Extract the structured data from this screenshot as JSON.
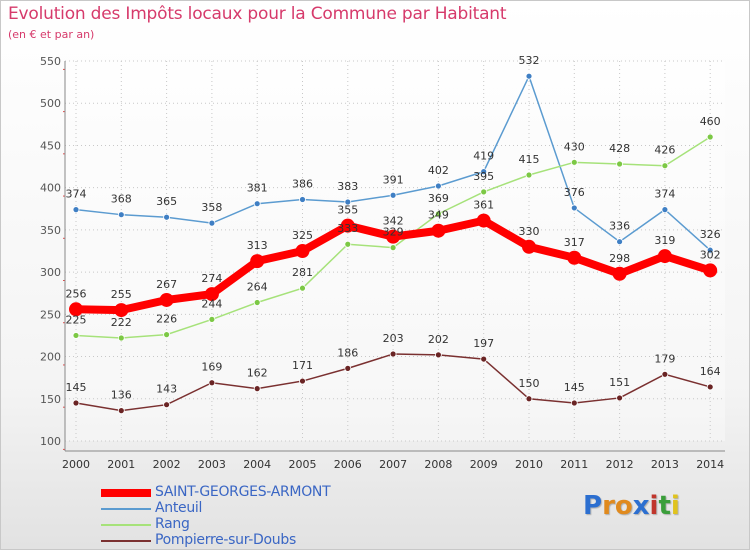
{
  "chart_data": {
    "type": "line",
    "title": "Evolution des Impôts locaux pour la Commune par Habitant",
    "subtitle": "(en € et par an)",
    "x": [
      "2000",
      "2001",
      "2002",
      "2003",
      "2004",
      "2005",
      "2006",
      "2007",
      "2008",
      "2009",
      "2010",
      "2011",
      "2012",
      "2013",
      "2014"
    ],
    "ylim": [
      100,
      550
    ],
    "yticks": [
      100,
      150,
      200,
      250,
      300,
      350,
      400,
      450,
      500,
      550
    ],
    "series": [
      {
        "name": "SAINT-GEORGES-ARMONT",
        "color": "#ff0000",
        "highlight": true,
        "values": [
          256,
          255,
          267,
          274,
          313,
          325,
          355,
          342,
          349,
          361,
          330,
          317,
          298,
          319,
          302
        ]
      },
      {
        "name": "Anteuil",
        "color": "#5b9bd0",
        "marker": "#3f7fc4",
        "values": [
          374,
          368,
          365,
          358,
          381,
          386,
          383,
          391,
          402,
          419,
          532,
          376,
          336,
          374,
          326
        ]
      },
      {
        "name": "Rang",
        "color": "#a6e27a",
        "marker": "#7cc845",
        "values": [
          225,
          222,
          226,
          244,
          264,
          281,
          333,
          329,
          369,
          395,
          415,
          430,
          428,
          426,
          460
        ]
      },
      {
        "name": "Pompierre-sur-Doubs",
        "color": "#7a3030",
        "marker": "#6a2424",
        "values": [
          145,
          136,
          143,
          169,
          162,
          171,
          186,
          203,
          202,
          197,
          150,
          145,
          151,
          179,
          164
        ]
      }
    ]
  },
  "legend": {
    "items": [
      {
        "label": "SAINT-GEORGES-ARMONT",
        "color": "#ff0000"
      },
      {
        "label": "Anteuil",
        "color": "#5b9bd0"
      },
      {
        "label": "Rang",
        "color": "#a6e27a"
      },
      {
        "label": "Pompierre-sur-Doubs",
        "color": "#7a3030"
      }
    ]
  },
  "brand": {
    "letters": [
      "P",
      "r",
      "o",
      "x",
      "i",
      "t",
      "i"
    ],
    "colors": [
      "#2c6fd0",
      "#e08a1e",
      "#e08a1e",
      "#2c6fd0",
      "#c0362c",
      "#3a9e3a",
      "#e0c31e"
    ]
  }
}
